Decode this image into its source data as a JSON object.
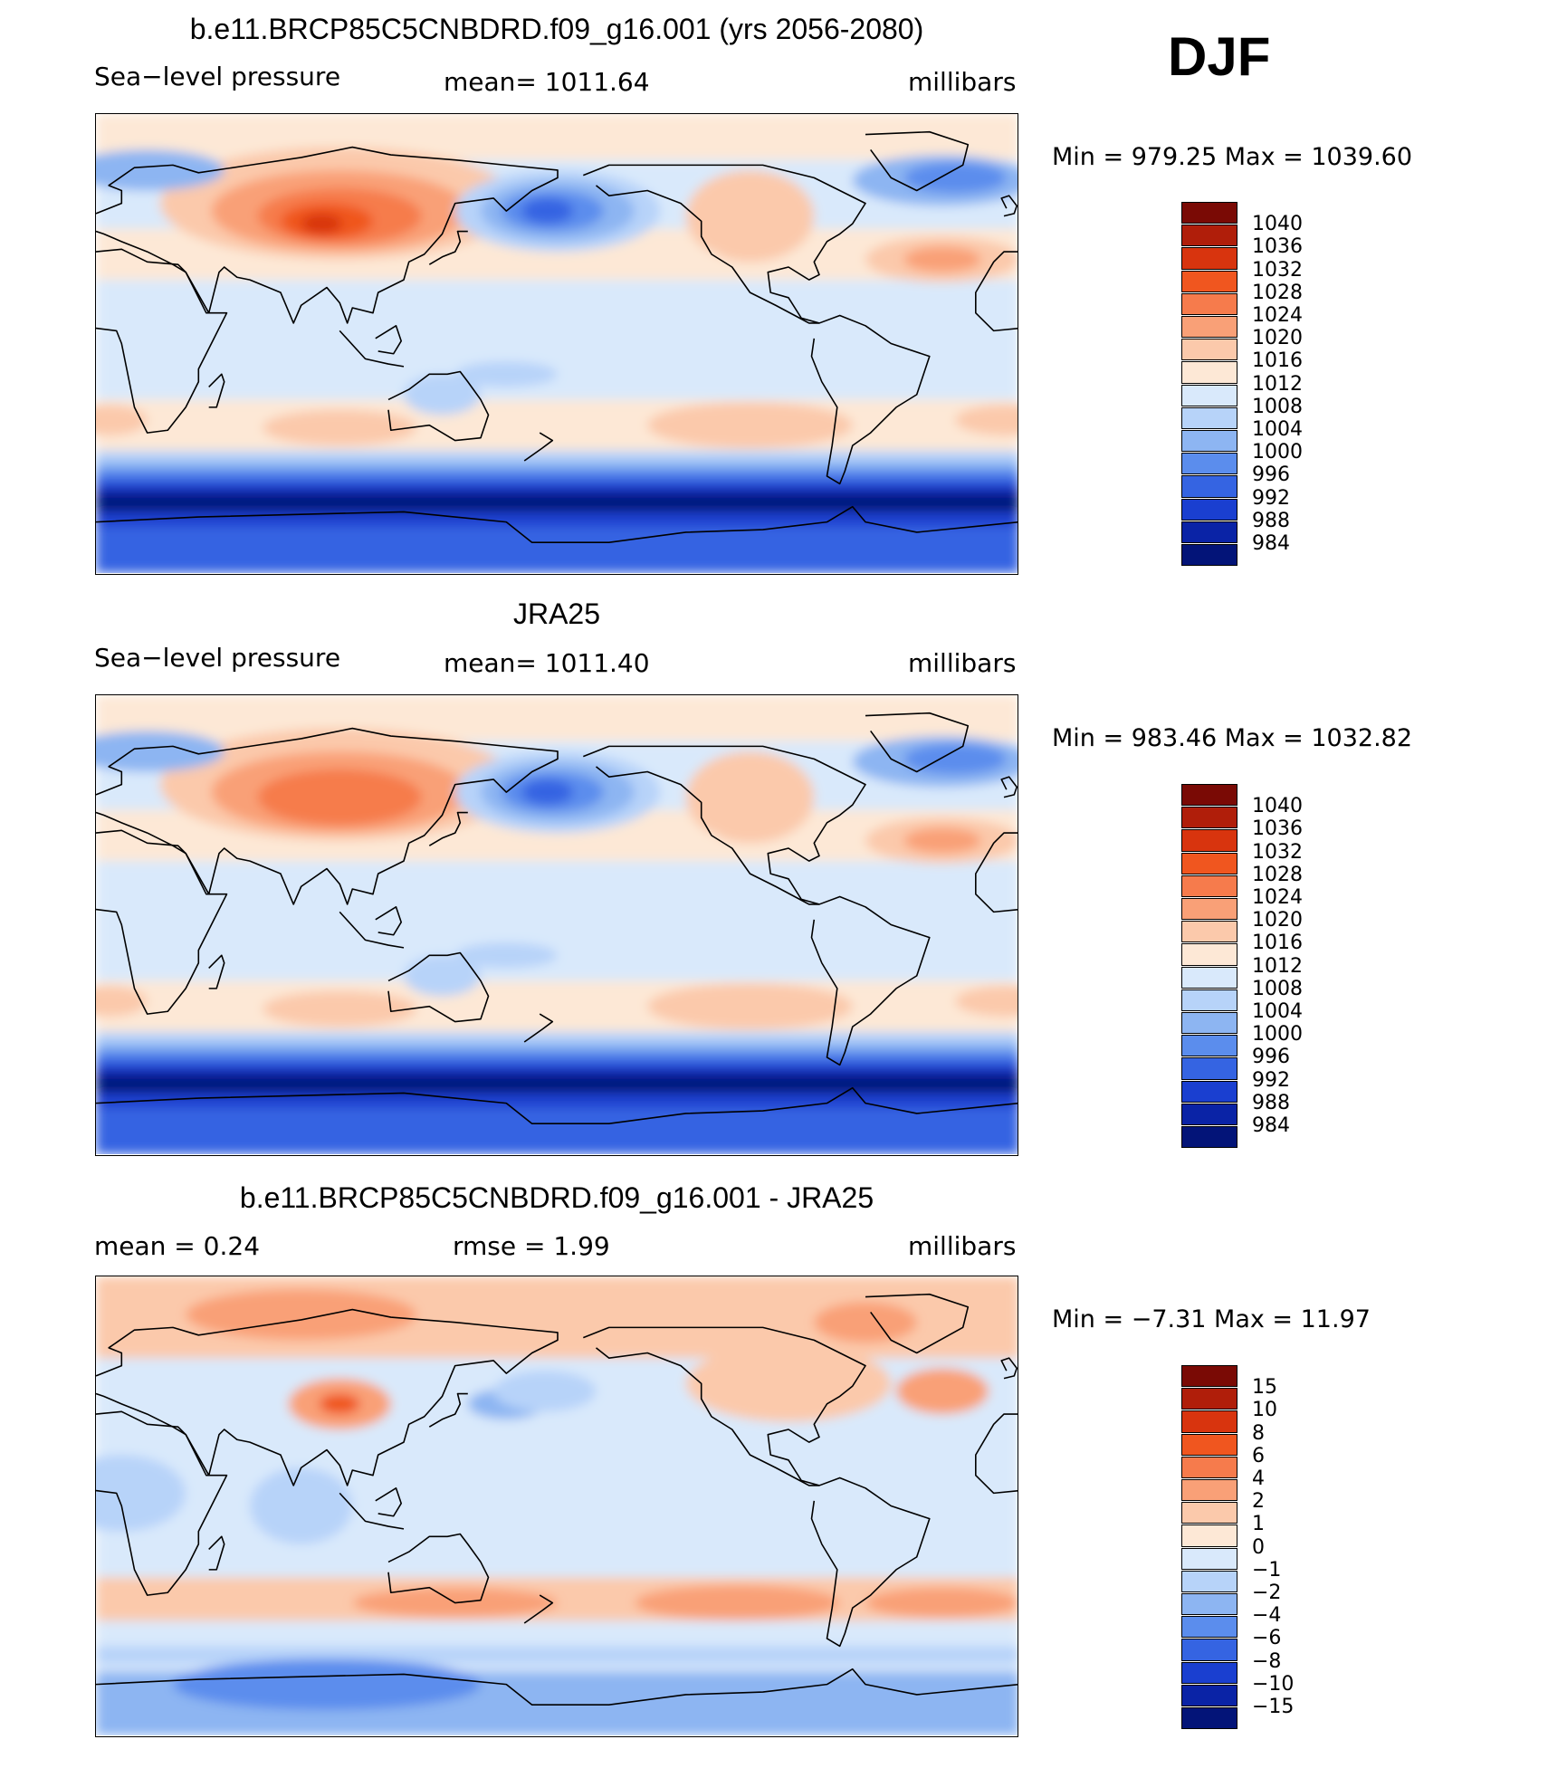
{
  "season": "DJF",
  "panels": [
    {
      "id": "model",
      "title": "b.e11.BRCP85C5CNBDRD.f09_g16.001 (yrs 2056-2080)",
      "left_label": "Sea−level pressure",
      "mid_label": "mean=  1011.64",
      "right_label": "millibars",
      "minmax": "Min  =  979.25  Max  =  1039.60",
      "colorbar": {
        "labels": [
          "1040",
          "1036",
          "1032",
          "1028",
          "1024",
          "1020",
          "1016",
          "1012",
          "1008",
          "1004",
          "1000",
          "996",
          "992",
          "988",
          "984"
        ],
        "colors": [
          "#7a0a05",
          "#b01e0a",
          "#d8340e",
          "#f0561f",
          "#f67b4c",
          "#f9a077",
          "#fbc9ab",
          "#fde8d6",
          "#d9e9fb",
          "#b7d3f9",
          "#8db5f2",
          "#5b8ded",
          "#3564e2",
          "#1a3fd0",
          "#0a23a6",
          "#031478"
        ]
      },
      "chart_data": {
        "type": "heatmap",
        "title": "b.e11.BRCP85C5CNBDRD.f09_g16.001 (yrs 2056-2080)",
        "variable": "Sea−level pressure",
        "units": "millibars",
        "mean": 1011.64,
        "min": 979.25,
        "max": 1039.6,
        "levels": [
          984,
          988,
          992,
          996,
          1000,
          1004,
          1008,
          1012,
          1016,
          1020,
          1024,
          1028,
          1032,
          1036,
          1040
        ]
      }
    },
    {
      "id": "obs",
      "title": "JRA25",
      "left_label": "Sea−level pressure",
      "mid_label": "mean=  1011.40",
      "right_label": "millibars",
      "minmax": "Min  =  983.46  Max  =  1032.82",
      "colorbar": {
        "labels": [
          "1040",
          "1036",
          "1032",
          "1028",
          "1024",
          "1020",
          "1016",
          "1012",
          "1008",
          "1004",
          "1000",
          "996",
          "992",
          "988",
          "984"
        ],
        "colors": [
          "#7a0a05",
          "#b01e0a",
          "#d8340e",
          "#f0561f",
          "#f67b4c",
          "#f9a077",
          "#fbc9ab",
          "#fde8d6",
          "#d9e9fb",
          "#b7d3f9",
          "#8db5f2",
          "#5b8ded",
          "#3564e2",
          "#1a3fd0",
          "#0a23a6",
          "#031478"
        ]
      },
      "chart_data": {
        "type": "heatmap",
        "title": "JRA25",
        "variable": "Sea−level pressure",
        "units": "millibars",
        "mean": 1011.4,
        "min": 983.46,
        "max": 1032.82,
        "levels": [
          984,
          988,
          992,
          996,
          1000,
          1004,
          1008,
          1012,
          1016,
          1020,
          1024,
          1028,
          1032,
          1036,
          1040
        ]
      }
    },
    {
      "id": "diff",
      "title": "b.e11.BRCP85C5CNBDRD.f09_g16.001 - JRA25",
      "left_label": "mean =     0.24",
      "mid_label": "rmse =     1.99",
      "right_label": "millibars",
      "minmax": "Min  =    −7.31  Max  =    11.97",
      "colorbar": {
        "labels": [
          "15",
          "10",
          "8",
          "6",
          "4",
          "2",
          "1",
          "0",
          "−1",
          "−2",
          "−4",
          "−6",
          "−8",
          "−10",
          "−15"
        ],
        "colors": [
          "#7a0a05",
          "#b01e0a",
          "#d8340e",
          "#f0561f",
          "#f67b4c",
          "#f9a077",
          "#fbc9ab",
          "#fde8d6",
          "#d9e9fb",
          "#b7d3f9",
          "#8db5f2",
          "#5b8ded",
          "#3564e2",
          "#1a3fd0",
          "#0a23a6",
          "#031478"
        ]
      },
      "chart_data": {
        "type": "heatmap",
        "title": "b.e11.BRCP85C5CNBDRD.f09_g16.001 - JRA25",
        "units": "millibars",
        "mean": 0.24,
        "rmse": 1.99,
        "min": -7.31,
        "max": 11.97,
        "levels": [
          -15,
          -10,
          -8,
          -6,
          -4,
          -2,
          -1,
          0,
          1,
          2,
          4,
          6,
          8,
          10,
          15
        ]
      }
    }
  ]
}
